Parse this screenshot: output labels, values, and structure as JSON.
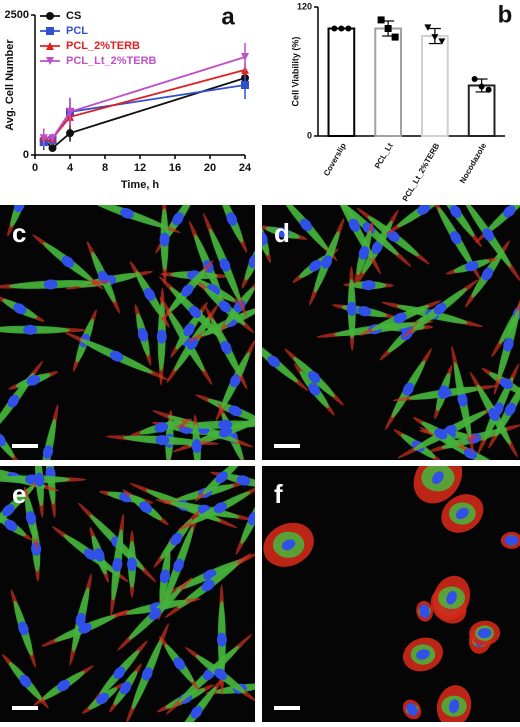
{
  "chart_data": [
    {
      "type": "line",
      "panel": "a",
      "xlabel": "Time, h",
      "ylabel": "Avg. Cell Number",
      "x": [
        1,
        2,
        4,
        24
      ],
      "xlim": [
        0,
        24
      ],
      "xticks": [
        0,
        4,
        8,
        12,
        16,
        20,
        24
      ],
      "ylim": [
        0,
        2500
      ],
      "yticks": [
        0,
        2500
      ],
      "legend": "upper left",
      "series": [
        {
          "name": "CS",
          "color": "#111111",
          "marker": "circle",
          "values": [
            270,
            125,
            390,
            1375
          ],
          "errors": [
            180,
            60,
            150,
            100
          ]
        },
        {
          "name": "PCL",
          "color": "#3050d0",
          "marker": "square",
          "values": [
            230,
            270,
            770,
            1250
          ],
          "errors": [
            120,
            100,
            250,
            250
          ]
        },
        {
          "name": "PCL_2%TERB",
          "color": "#e02020",
          "marker": "triangle",
          "values": [
            320,
            300,
            680,
            1520
          ],
          "errors": [
            150,
            80,
            200,
            120
          ]
        },
        {
          "name": "PCL_Lt_2%TERB",
          "color": "#c050c8",
          "marker": "triangle-down",
          "values": [
            300,
            300,
            770,
            1750
          ],
          "errors": [
            150,
            80,
            250,
            250
          ]
        }
      ]
    },
    {
      "type": "bar",
      "panel": "b",
      "ylabel": "Cell Viability (%)",
      "categories": [
        "Coverslip",
        "PCL_Lt",
        "PCL_Lt_2%TERB",
        "Nocodazole"
      ],
      "values": [
        100,
        100,
        93,
        47
      ],
      "errors": [
        0,
        7,
        7,
        6
      ],
      "points": [
        [
          100,
          100,
          100
        ],
        [
          108,
          100,
          92
        ],
        [
          101,
          92,
          88
        ],
        [
          53,
          46,
          43
        ]
      ],
      "colors": [
        "#000000",
        "#a0a0a0",
        "#d0d0d0",
        "#222222"
      ],
      "ylim": [
        0,
        120
      ],
      "yticks": [
        0,
        120
      ]
    }
  ],
  "images": [
    {
      "label": "c"
    },
    {
      "label": "d"
    },
    {
      "label": "e"
    },
    {
      "label": "f"
    }
  ]
}
